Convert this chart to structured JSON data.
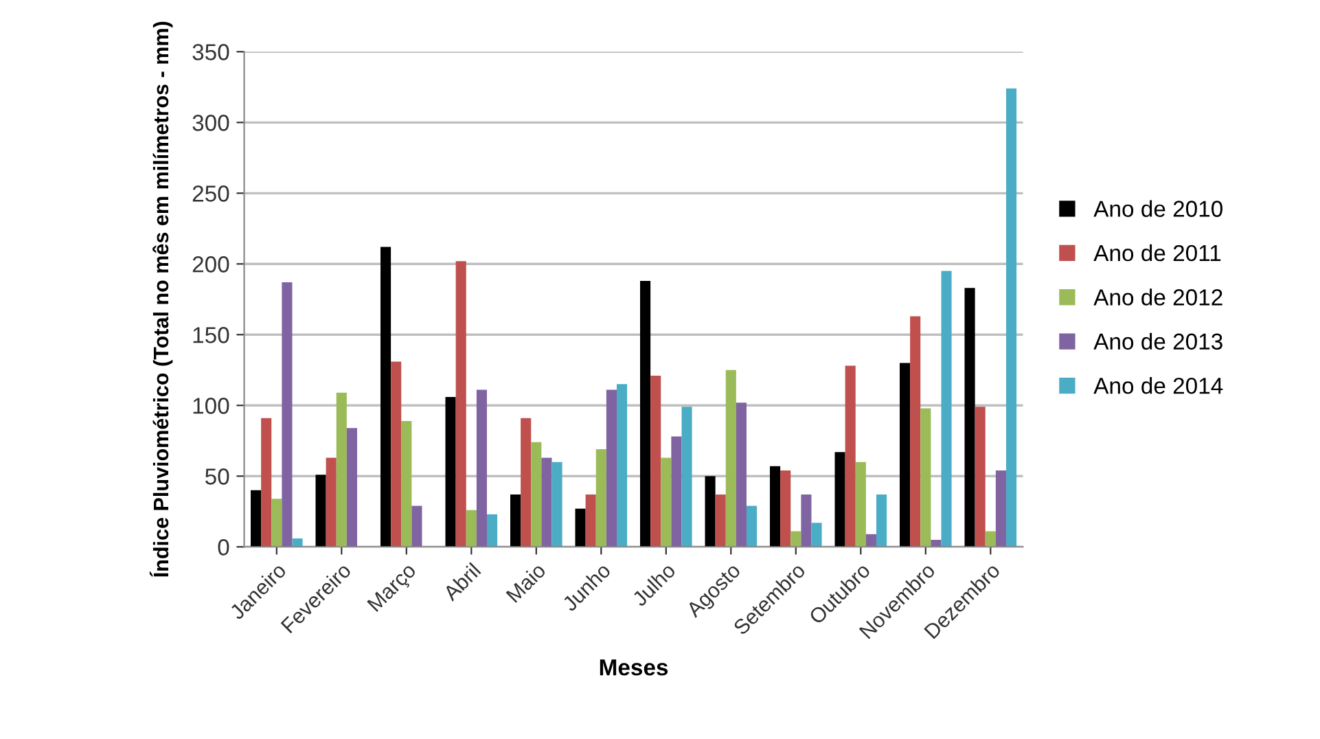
{
  "chart_data": {
    "type": "bar",
    "xlabel": "Meses",
    "ylabel": "Índice Pluviométrico (Total no mês em milímetros - mm)",
    "categories": [
      "Janeiro",
      "Fevereiro",
      "Março",
      "Abril",
      "Maio",
      "Junho",
      "Julho",
      "Agosto",
      "Setembro",
      "Outubro",
      "Novembro",
      "Dezembro"
    ],
    "series": [
      {
        "name": "Ano de 2010",
        "color": "#000000",
        "values": [
          40,
          51,
          212,
          106,
          37,
          27,
          188,
          50,
          57,
          67,
          130,
          183
        ]
      },
      {
        "name": "Ano de 2011",
        "color": "#c0504d",
        "values": [
          91,
          63,
          131,
          202,
          91,
          37,
          121,
          37,
          54,
          128,
          163,
          99
        ]
      },
      {
        "name": "Ano de 2012",
        "color": "#9bbb59",
        "values": [
          34,
          109,
          89,
          26,
          74,
          69,
          63,
          125,
          11,
          60,
          98,
          11
        ]
      },
      {
        "name": "Ano de 2013",
        "color": "#8064a2",
        "values": [
          187,
          84,
          29,
          111,
          63,
          111,
          78,
          102,
          37,
          9,
          5,
          54
        ]
      },
      {
        "name": "Ano de 2014",
        "color": "#4bacc6",
        "values": [
          6,
          0,
          0,
          23,
          60,
          115,
          99,
          29,
          17,
          37,
          195,
          324
        ]
      }
    ],
    "ylim": [
      0,
      350
    ],
    "yticks": [
      0,
      50,
      100,
      150,
      200,
      250,
      300,
      350
    ],
    "grid": "y",
    "legend": "right"
  }
}
